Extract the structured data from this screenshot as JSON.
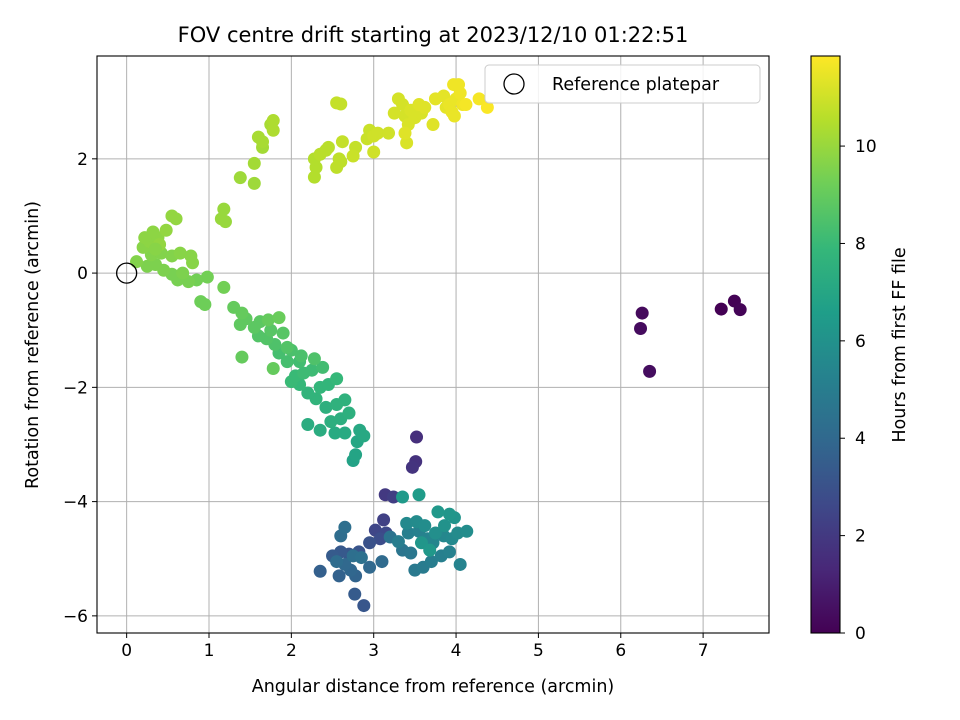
{
  "chart_data": {
    "type": "scatter",
    "title": "FOV centre drift starting at 2023/12/10 01:22:51",
    "xlabel": "Angular distance from reference (arcmin)",
    "ylabel": "Rotation from reference (arcmin)",
    "xlim": [
      -0.36,
      7.8
    ],
    "ylim": [
      -6.3,
      3.8
    ],
    "xticks": [
      0,
      1,
      2,
      3,
      4,
      5,
      6,
      7
    ],
    "yticks": [
      -6,
      -4,
      -2,
      0,
      2
    ],
    "grid": true,
    "legend": {
      "position": "top-right",
      "entries": [
        "Reference platepar"
      ]
    },
    "reference_point": {
      "x": 0,
      "y": 0
    },
    "colorbar": {
      "label": "Hours from first FF file",
      "colormap": "viridis",
      "range": [
        0,
        11.85
      ],
      "ticks": [
        0,
        2,
        4,
        6,
        8,
        10
      ],
      "stops": [
        "#440154",
        "#482878",
        "#3e4989",
        "#31688e",
        "#26828e",
        "#1f9e89",
        "#35b779",
        "#6ece58",
        "#b5de2b",
        "#fde725"
      ]
    },
    "points": [
      {
        "x": 7.22,
        "y": -0.63,
        "h": 0.0
      },
      {
        "x": 7.38,
        "y": -0.49,
        "h": 0.05
      },
      {
        "x": 7.45,
        "y": -0.64,
        "h": 0.1
      },
      {
        "x": 6.26,
        "y": -0.7,
        "h": 0.3
      },
      {
        "x": 6.24,
        "y": -0.97,
        "h": 0.35
      },
      {
        "x": 6.35,
        "y": -1.72,
        "h": 0.4
      },
      {
        "x": 3.52,
        "y": -2.87,
        "h": 1.6
      },
      {
        "x": 3.51,
        "y": -3.3,
        "h": 1.7
      },
      {
        "x": 3.47,
        "y": -3.4,
        "h": 1.8
      },
      {
        "x": 3.14,
        "y": -3.88,
        "h": 2.0
      },
      {
        "x": 3.24,
        "y": -3.92,
        "h": 2.2
      },
      {
        "x": 3.12,
        "y": -4.32,
        "h": 2.3
      },
      {
        "x": 3.02,
        "y": -4.5,
        "h": 2.5
      },
      {
        "x": 3.15,
        "y": -4.55,
        "h": 2.6
      },
      {
        "x": 3.08,
        "y": -4.65,
        "h": 2.8
      },
      {
        "x": 2.95,
        "y": -4.72,
        "h": 3.0
      },
      {
        "x": 2.82,
        "y": -4.88,
        "h": 3.1
      },
      {
        "x": 2.7,
        "y": -4.92,
        "h": 3.2
      },
      {
        "x": 2.6,
        "y": -4.88,
        "h": 3.3
      },
      {
        "x": 2.5,
        "y": -4.95,
        "h": 3.4
      },
      {
        "x": 2.88,
        "y": -5.82,
        "h": 3.2
      },
      {
        "x": 2.77,
        "y": -5.62,
        "h": 3.4
      },
      {
        "x": 2.35,
        "y": -5.22,
        "h": 3.6
      },
      {
        "x": 2.58,
        "y": -5.3,
        "h": 3.7
      },
      {
        "x": 2.78,
        "y": -5.3,
        "h": 3.8
      },
      {
        "x": 2.72,
        "y": -5.2,
        "h": 3.9
      },
      {
        "x": 2.95,
        "y": -5.15,
        "h": 4.0
      },
      {
        "x": 3.1,
        "y": -5.05,
        "h": 4.1
      },
      {
        "x": 2.65,
        "y": -5.1,
        "h": 4.0
      },
      {
        "x": 2.55,
        "y": -5.05,
        "h": 4.2
      },
      {
        "x": 2.75,
        "y": -4.95,
        "h": 4.3
      },
      {
        "x": 2.85,
        "y": -4.98,
        "h": 4.4
      },
      {
        "x": 2.6,
        "y": -4.6,
        "h": 4.2
      },
      {
        "x": 2.65,
        "y": -4.45,
        "h": 4.3
      },
      {
        "x": 3.2,
        "y": -4.62,
        "h": 4.5
      },
      {
        "x": 3.35,
        "y": -4.85,
        "h": 4.6
      },
      {
        "x": 3.45,
        "y": -4.9,
        "h": 4.7
      },
      {
        "x": 3.5,
        "y": -5.2,
        "h": 4.8
      },
      {
        "x": 3.6,
        "y": -5.15,
        "h": 4.9
      },
      {
        "x": 3.7,
        "y": -5.05,
        "h": 5.0
      },
      {
        "x": 3.82,
        "y": -4.95,
        "h": 5.1
      },
      {
        "x": 3.92,
        "y": -4.88,
        "h": 5.2
      },
      {
        "x": 4.05,
        "y": -5.1,
        "h": 5.3
      },
      {
        "x": 3.3,
        "y": -4.7,
        "h": 5.0
      },
      {
        "x": 3.42,
        "y": -4.55,
        "h": 5.1
      },
      {
        "x": 3.55,
        "y": -4.52,
        "h": 5.2
      },
      {
        "x": 3.65,
        "y": -4.65,
        "h": 5.3
      },
      {
        "x": 3.72,
        "y": -4.72,
        "h": 5.4
      },
      {
        "x": 3.85,
        "y": -4.6,
        "h": 5.5
      },
      {
        "x": 3.95,
        "y": -4.65,
        "h": 5.6
      },
      {
        "x": 4.02,
        "y": -4.55,
        "h": 5.7
      },
      {
        "x": 4.13,
        "y": -4.52,
        "h": 5.8
      },
      {
        "x": 3.4,
        "y": -4.38,
        "h": 5.6
      },
      {
        "x": 3.52,
        "y": -4.35,
        "h": 5.7
      },
      {
        "x": 3.62,
        "y": -4.42,
        "h": 5.8
      },
      {
        "x": 3.75,
        "y": -4.55,
        "h": 5.9
      },
      {
        "x": 3.86,
        "y": -4.42,
        "h": 6.0
      },
      {
        "x": 3.98,
        "y": -4.28,
        "h": 6.1
      },
      {
        "x": 3.92,
        "y": -4.22,
        "h": 6.2
      },
      {
        "x": 3.78,
        "y": -4.18,
        "h": 6.3
      },
      {
        "x": 3.35,
        "y": -3.92,
        "h": 6.4
      },
      {
        "x": 3.55,
        "y": -3.88,
        "h": 6.5
      },
      {
        "x": 3.58,
        "y": -4.72,
        "h": 6.2
      },
      {
        "x": 3.68,
        "y": -4.85,
        "h": 6.3
      },
      {
        "x": 2.75,
        "y": -3.28,
        "h": 6.8
      },
      {
        "x": 2.78,
        "y": -3.18,
        "h": 6.9
      },
      {
        "x": 2.8,
        "y": -2.95,
        "h": 7.0
      },
      {
        "x": 2.83,
        "y": -2.75,
        "h": 7.1
      },
      {
        "x": 2.88,
        "y": -2.85,
        "h": 7.1
      },
      {
        "x": 2.65,
        "y": -2.8,
        "h": 7.2
      },
      {
        "x": 2.53,
        "y": -2.8,
        "h": 7.2
      },
      {
        "x": 2.35,
        "y": -2.75,
        "h": 7.3
      },
      {
        "x": 2.2,
        "y": -2.65,
        "h": 7.3
      },
      {
        "x": 2.48,
        "y": -2.6,
        "h": 7.4
      },
      {
        "x": 2.6,
        "y": -2.55,
        "h": 7.4
      },
      {
        "x": 2.7,
        "y": -2.45,
        "h": 7.5
      },
      {
        "x": 2.42,
        "y": -2.35,
        "h": 7.5
      },
      {
        "x": 2.55,
        "y": -2.3,
        "h": 7.6
      },
      {
        "x": 2.65,
        "y": -2.22,
        "h": 7.6
      },
      {
        "x": 2.3,
        "y": -2.2,
        "h": 7.7
      },
      {
        "x": 2.2,
        "y": -2.1,
        "h": 7.7
      },
      {
        "x": 2.35,
        "y": -2.0,
        "h": 7.8
      },
      {
        "x": 2.45,
        "y": -1.95,
        "h": 7.8
      },
      {
        "x": 2.55,
        "y": -1.85,
        "h": 7.9
      },
      {
        "x": 2.1,
        "y": -1.95,
        "h": 7.9
      },
      {
        "x": 2.0,
        "y": -1.9,
        "h": 8.0
      },
      {
        "x": 2.05,
        "y": -1.8,
        "h": 8.0
      },
      {
        "x": 2.15,
        "y": -1.75,
        "h": 8.1
      },
      {
        "x": 2.25,
        "y": -1.7,
        "h": 8.1
      },
      {
        "x": 2.38,
        "y": -1.65,
        "h": 8.2
      },
      {
        "x": 2.1,
        "y": -1.55,
        "h": 8.2
      },
      {
        "x": 1.95,
        "y": -1.55,
        "h": 8.3
      },
      {
        "x": 1.85,
        "y": -1.4,
        "h": 8.3
      },
      {
        "x": 2.0,
        "y": -1.35,
        "h": 8.4
      },
      {
        "x": 2.12,
        "y": -1.45,
        "h": 8.4
      },
      {
        "x": 2.28,
        "y": -1.5,
        "h": 8.5
      },
      {
        "x": 1.8,
        "y": -1.25,
        "h": 8.5
      },
      {
        "x": 1.7,
        "y": -1.15,
        "h": 8.6
      },
      {
        "x": 1.6,
        "y": -1.1,
        "h": 8.6
      },
      {
        "x": 1.9,
        "y": -1.05,
        "h": 8.7
      },
      {
        "x": 1.75,
        "y": -1.0,
        "h": 8.7
      },
      {
        "x": 1.55,
        "y": -0.95,
        "h": 8.8
      },
      {
        "x": 1.62,
        "y": -0.85,
        "h": 8.8
      },
      {
        "x": 1.45,
        "y": -0.8,
        "h": 8.9
      },
      {
        "x": 1.38,
        "y": -0.9,
        "h": 8.9
      },
      {
        "x": 1.3,
        "y": -0.6,
        "h": 9.0
      },
      {
        "x": 1.4,
        "y": -0.7,
        "h": 9.0
      },
      {
        "x": 1.72,
        "y": -0.82,
        "h": 9.0
      },
      {
        "x": 1.85,
        "y": -0.78,
        "h": 9.1
      },
      {
        "x": 1.4,
        "y": -1.47,
        "h": 9.0
      },
      {
        "x": 1.78,
        "y": -1.67,
        "h": 9.0
      },
      {
        "x": 1.95,
        "y": -1.3,
        "h": 8.6
      },
      {
        "x": 0.9,
        "y": -0.5,
        "h": 9.2
      },
      {
        "x": 0.95,
        "y": -0.55,
        "h": 9.2
      },
      {
        "x": 1.18,
        "y": -0.25,
        "h": 9.3
      },
      {
        "x": 0.98,
        "y": -0.07,
        "h": 9.3
      },
      {
        "x": 0.85,
        "y": -0.12,
        "h": 9.3
      },
      {
        "x": 0.75,
        "y": -0.15,
        "h": 9.4
      },
      {
        "x": 0.62,
        "y": -0.12,
        "h": 9.4
      },
      {
        "x": 0.55,
        "y": -0.02,
        "h": 9.4
      },
      {
        "x": 0.68,
        "y": 0.0,
        "h": 9.5
      },
      {
        "x": 0.45,
        "y": 0.05,
        "h": 9.5
      },
      {
        "x": 0.35,
        "y": 0.15,
        "h": 9.5
      },
      {
        "x": 0.25,
        "y": 0.12,
        "h": 9.5
      },
      {
        "x": 0.12,
        "y": 0.2,
        "h": 9.6
      },
      {
        "x": 0.3,
        "y": 0.32,
        "h": 9.6
      },
      {
        "x": 0.42,
        "y": 0.35,
        "h": 9.6
      },
      {
        "x": 0.55,
        "y": 0.3,
        "h": 9.6
      },
      {
        "x": 0.65,
        "y": 0.35,
        "h": 9.7
      },
      {
        "x": 0.78,
        "y": 0.3,
        "h": 9.7
      },
      {
        "x": 0.8,
        "y": 0.18,
        "h": 9.7
      },
      {
        "x": 0.2,
        "y": 0.45,
        "h": 9.7
      },
      {
        "x": 0.28,
        "y": 0.55,
        "h": 9.8
      },
      {
        "x": 0.38,
        "y": 0.62,
        "h": 9.8
      },
      {
        "x": 0.22,
        "y": 0.62,
        "h": 9.8
      },
      {
        "x": 0.32,
        "y": 0.72,
        "h": 9.8
      },
      {
        "x": 0.48,
        "y": 0.75,
        "h": 9.9
      },
      {
        "x": 0.4,
        "y": 0.5,
        "h": 9.9
      },
      {
        "x": 0.55,
        "y": 1.0,
        "h": 9.9
      },
      {
        "x": 0.6,
        "y": 0.95,
        "h": 9.9
      },
      {
        "x": 0.35,
        "y": 0.42,
        "h": 9.7
      },
      {
        "x": 1.15,
        "y": 0.95,
        "h": 10.0
      },
      {
        "x": 1.2,
        "y": 0.9,
        "h": 10.0
      },
      {
        "x": 1.18,
        "y": 1.12,
        "h": 10.0
      },
      {
        "x": 1.38,
        "y": 1.67,
        "h": 10.1
      },
      {
        "x": 1.55,
        "y": 1.57,
        "h": 10.1
      },
      {
        "x": 1.55,
        "y": 1.92,
        "h": 10.2
      },
      {
        "x": 1.65,
        "y": 2.2,
        "h": 10.2
      },
      {
        "x": 1.6,
        "y": 2.38,
        "h": 10.3
      },
      {
        "x": 1.65,
        "y": 2.3,
        "h": 10.3
      },
      {
        "x": 1.75,
        "y": 2.6,
        "h": 10.3
      },
      {
        "x": 1.78,
        "y": 2.67,
        "h": 10.4
      },
      {
        "x": 1.78,
        "y": 2.5,
        "h": 10.4
      },
      {
        "x": 2.28,
        "y": 1.68,
        "h": 10.5
      },
      {
        "x": 2.3,
        "y": 1.85,
        "h": 10.5
      },
      {
        "x": 2.28,
        "y": 2.0,
        "h": 10.5
      },
      {
        "x": 2.35,
        "y": 2.08,
        "h": 10.6
      },
      {
        "x": 2.45,
        "y": 2.2,
        "h": 10.6
      },
      {
        "x": 2.42,
        "y": 2.15,
        "h": 10.6
      },
      {
        "x": 2.55,
        "y": 1.85,
        "h": 10.7
      },
      {
        "x": 2.6,
        "y": 1.95,
        "h": 10.7
      },
      {
        "x": 2.58,
        "y": 2.0,
        "h": 10.7
      },
      {
        "x": 2.55,
        "y": 2.98,
        "h": 10.8
      },
      {
        "x": 2.62,
        "y": 2.3,
        "h": 10.8
      },
      {
        "x": 2.78,
        "y": 2.2,
        "h": 10.8
      },
      {
        "x": 2.75,
        "y": 2.05,
        "h": 10.9
      },
      {
        "x": 2.92,
        "y": 2.35,
        "h": 10.9
      },
      {
        "x": 2.95,
        "y": 2.5,
        "h": 10.9
      },
      {
        "x": 3.0,
        "y": 2.12,
        "h": 11.0
      },
      {
        "x": 3.0,
        "y": 2.4,
        "h": 11.0
      },
      {
        "x": 3.05,
        "y": 2.45,
        "h": 11.0
      },
      {
        "x": 3.18,
        "y": 2.45,
        "h": 11.0
      },
      {
        "x": 3.25,
        "y": 2.8,
        "h": 11.1
      },
      {
        "x": 3.3,
        "y": 3.05,
        "h": 11.1
      },
      {
        "x": 3.35,
        "y": 2.95,
        "h": 11.1
      },
      {
        "x": 3.38,
        "y": 2.75,
        "h": 11.1
      },
      {
        "x": 3.42,
        "y": 2.6,
        "h": 11.2
      },
      {
        "x": 3.45,
        "y": 2.85,
        "h": 11.2
      },
      {
        "x": 3.5,
        "y": 2.72,
        "h": 11.2
      },
      {
        "x": 3.58,
        "y": 2.8,
        "h": 11.2
      },
      {
        "x": 3.4,
        "y": 2.28,
        "h": 11.2
      },
      {
        "x": 3.38,
        "y": 2.45,
        "h": 11.3
      },
      {
        "x": 3.55,
        "y": 2.95,
        "h": 11.3
      },
      {
        "x": 3.62,
        "y": 2.9,
        "h": 11.3
      },
      {
        "x": 3.72,
        "y": 2.6,
        "h": 11.3
      },
      {
        "x": 3.75,
        "y": 3.05,
        "h": 11.4
      },
      {
        "x": 3.85,
        "y": 3.1,
        "h": 11.4
      },
      {
        "x": 3.88,
        "y": 2.9,
        "h": 11.4
      },
      {
        "x": 3.92,
        "y": 2.95,
        "h": 11.5
      },
      {
        "x": 3.95,
        "y": 2.82,
        "h": 11.5
      },
      {
        "x": 3.98,
        "y": 2.75,
        "h": 11.5
      },
      {
        "x": 4.0,
        "y": 3.05,
        "h": 11.5
      },
      {
        "x": 4.05,
        "y": 3.15,
        "h": 11.6
      },
      {
        "x": 3.97,
        "y": 3.3,
        "h": 11.6
      },
      {
        "x": 4.03,
        "y": 3.3,
        "h": 11.6
      },
      {
        "x": 4.08,
        "y": 2.95,
        "h": 11.6
      },
      {
        "x": 4.12,
        "y": 2.95,
        "h": 11.7
      },
      {
        "x": 4.28,
        "y": 3.05,
        "h": 11.7
      },
      {
        "x": 4.38,
        "y": 2.9,
        "h": 11.8
      },
      {
        "x": 2.6,
        "y": 2.96,
        "h": 10.8
      }
    ]
  }
}
